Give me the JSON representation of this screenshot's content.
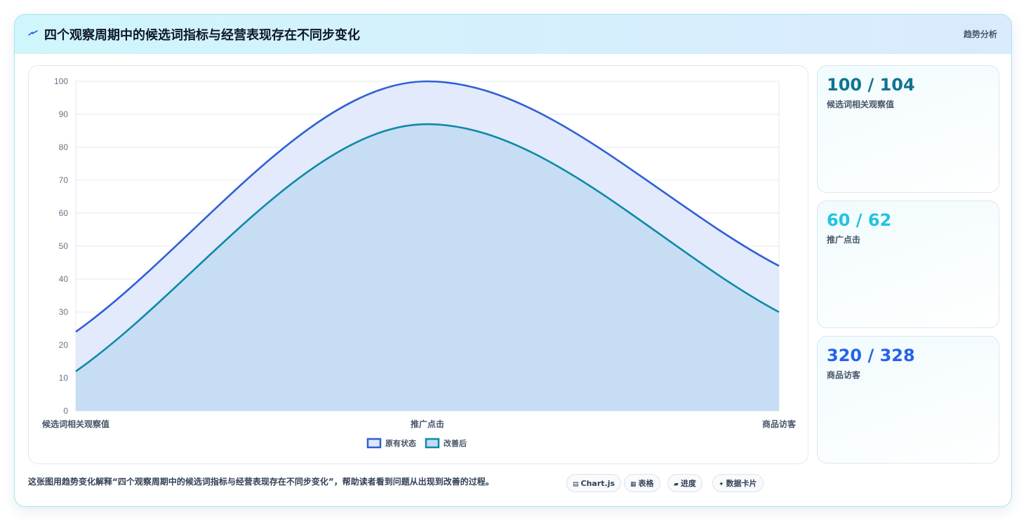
{
  "header": {
    "title": "四个观察周期中的候选词指标与经营表现存在不同步变化",
    "tag": "趋势分析"
  },
  "stats": [
    {
      "value": "100 / 104",
      "label": "候选词相关观察值",
      "color": "#0e7490"
    },
    {
      "value": "60 / 62",
      "label": "推广点击",
      "color": "#22c3e0"
    },
    {
      "value": "320 / 328",
      "label": "商品访客",
      "color": "#2563eb"
    }
  ],
  "caption": "这张图用趋势变化解释“四个观察周期中的候选词指标与经营表现存在不同步变化”，帮助读者看到问题从出现到改善的过程。",
  "chips": [
    {
      "icon": "▤",
      "label": "Chart.js"
    },
    {
      "icon": "▦",
      "label": "表格"
    },
    {
      "icon": "▰",
      "label": "进度"
    },
    {
      "icon": "✦",
      "label": "数据卡片"
    }
  ],
  "chart_data": {
    "type": "area",
    "categories": [
      "候选词相关观察值",
      "推广点击",
      "商品访客"
    ],
    "series": [
      {
        "name": "原有状态",
        "values": [
          24,
          100,
          44
        ],
        "color": "#2f5fd6",
        "fill": "#dfe8fb"
      },
      {
        "name": "改善后",
        "values": [
          12,
          87,
          30
        ],
        "color": "#0e89a8",
        "fill": "#c3dcf2"
      }
    ],
    "ylim": [
      0,
      100
    ],
    "yticks": [
      0,
      10,
      20,
      30,
      40,
      50,
      60,
      70,
      80,
      90,
      100
    ],
    "grid": true,
    "legend": "bottom"
  }
}
